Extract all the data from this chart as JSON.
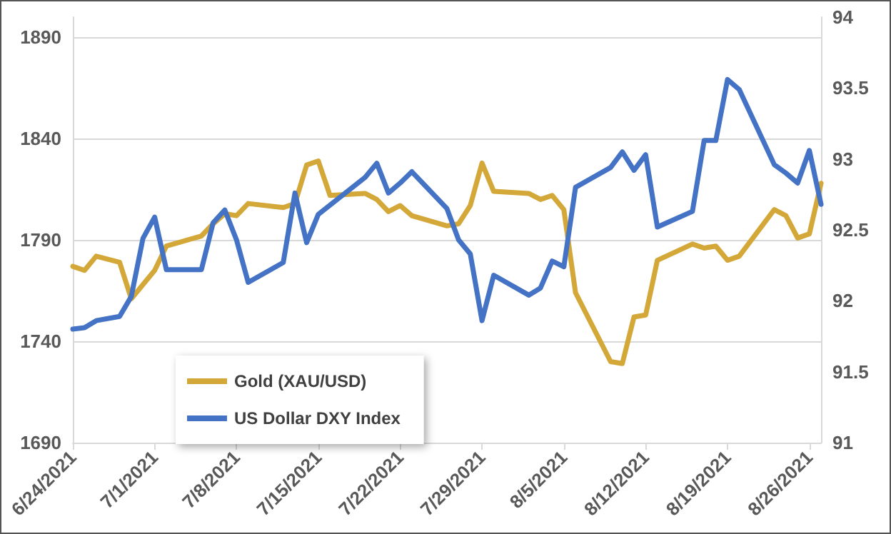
{
  "chart_data": {
    "type": "line",
    "xlim": [
      "2021-06-24",
      "2021-08-27"
    ],
    "xticks": [
      {
        "value": "2021-06-24",
        "label": "6/24/2021"
      },
      {
        "value": "2021-07-01",
        "label": "7/1/2021"
      },
      {
        "value": "2021-07-08",
        "label": "7/8/2021"
      },
      {
        "value": "2021-07-15",
        "label": "7/15/2021"
      },
      {
        "value": "2021-07-22",
        "label": "7/22/2021"
      },
      {
        "value": "2021-07-29",
        "label": "7/29/2021"
      },
      {
        "value": "2021-08-05",
        "label": "8/5/2021"
      },
      {
        "value": "2021-08-12",
        "label": "8/12/2021"
      },
      {
        "value": "2021-08-19",
        "label": "8/19/2021"
      },
      {
        "value": "2021-08-26",
        "label": "8/26/2021"
      }
    ],
    "ylim": [
      1690,
      1900
    ],
    "yticks": [
      1690,
      1740,
      1790,
      1840,
      1890
    ],
    "y2lim": [
      91,
      94
    ],
    "y2ticks": [
      91,
      91.5,
      92,
      92.5,
      93,
      93.5,
      94
    ],
    "grid": "y",
    "legend": "bottom left",
    "marker": "none",
    "line_style": "solid",
    "series": [
      {
        "name": "Gold (XAU/USD)",
        "color": "#d4a838",
        "x": [
          "2021-06-24",
          "2021-06-25",
          "2021-06-26",
          "2021-06-28",
          "2021-06-29",
          "2021-07-01",
          "2021-07-02",
          "2021-07-05",
          "2021-07-06",
          "2021-07-07",
          "2021-07-08",
          "2021-07-09",
          "2021-07-12",
          "2021-07-13",
          "2021-07-14",
          "2021-07-15",
          "2021-07-16",
          "2021-07-19",
          "2021-07-20",
          "2021-07-21",
          "2021-07-22",
          "2021-07-23",
          "2021-07-26",
          "2021-07-27",
          "2021-07-28",
          "2021-07-29",
          "2021-07-30",
          "2021-08-02",
          "2021-08-03",
          "2021-08-04",
          "2021-08-05",
          "2021-08-06",
          "2021-08-09",
          "2021-08-10",
          "2021-08-11",
          "2021-08-12",
          "2021-08-13",
          "2021-08-16",
          "2021-08-17",
          "2021-08-18",
          "2021-08-19",
          "2021-08-20",
          "2021-08-23",
          "2021-08-24",
          "2021-08-25",
          "2021-08-26",
          "2021-08-27"
        ],
        "values": [
          1777,
          1775,
          1782,
          1779,
          1761,
          1775,
          1787,
          1792,
          1798,
          1803,
          1802,
          1808,
          1806,
          1808,
          1827,
          1829,
          1812,
          1813,
          1810,
          1804,
          1807,
          1802,
          1797,
          1798,
          1807,
          1828,
          1814,
          1813,
          1810,
          1812,
          1805,
          1764,
          1730,
          1729,
          1752,
          1753,
          1780,
          1788,
          1786,
          1787,
          1780,
          1782,
          1805,
          1802,
          1791,
          1793,
          1818
        ]
      },
      {
        "name": "US Dollar DXY Index",
        "color": "#4472c4",
        "axis": "y2",
        "x": [
          "2021-06-24",
          "2021-06-25",
          "2021-06-26",
          "2021-06-28",
          "2021-06-29",
          "2021-06-30",
          "2021-07-01",
          "2021-07-02",
          "2021-07-05",
          "2021-07-06",
          "2021-07-07",
          "2021-07-08",
          "2021-07-09",
          "2021-07-12",
          "2021-07-13",
          "2021-07-14",
          "2021-07-15",
          "2021-07-19",
          "2021-07-20",
          "2021-07-21",
          "2021-07-22",
          "2021-07-23",
          "2021-07-26",
          "2021-07-27",
          "2021-07-28",
          "2021-07-29",
          "2021-07-30",
          "2021-08-02",
          "2021-08-03",
          "2021-08-04",
          "2021-08-05",
          "2021-08-06",
          "2021-08-09",
          "2021-08-10",
          "2021-08-11",
          "2021-08-12",
          "2021-08-13",
          "2021-08-16",
          "2021-08-17",
          "2021-08-18",
          "2021-08-19",
          "2021-08-20",
          "2021-08-23",
          "2021-08-24",
          "2021-08-25",
          "2021-08-26",
          "2021-08-27"
        ],
        "values": [
          91.8,
          91.81,
          91.86,
          91.89,
          92.03,
          92.44,
          92.59,
          92.22,
          92.22,
          92.55,
          92.64,
          92.43,
          92.13,
          92.27,
          92.76,
          92.41,
          92.61,
          92.87,
          92.97,
          92.76,
          92.83,
          92.91,
          92.65,
          92.43,
          92.33,
          91.86,
          92.18,
          92.04,
          92.09,
          92.28,
          92.24,
          92.8,
          92.94,
          93.05,
          92.92,
          93.03,
          92.52,
          92.63,
          93.13,
          93.13,
          93.56,
          93.49,
          92.96,
          92.9,
          92.83,
          93.06,
          92.68
        ]
      }
    ]
  }
}
